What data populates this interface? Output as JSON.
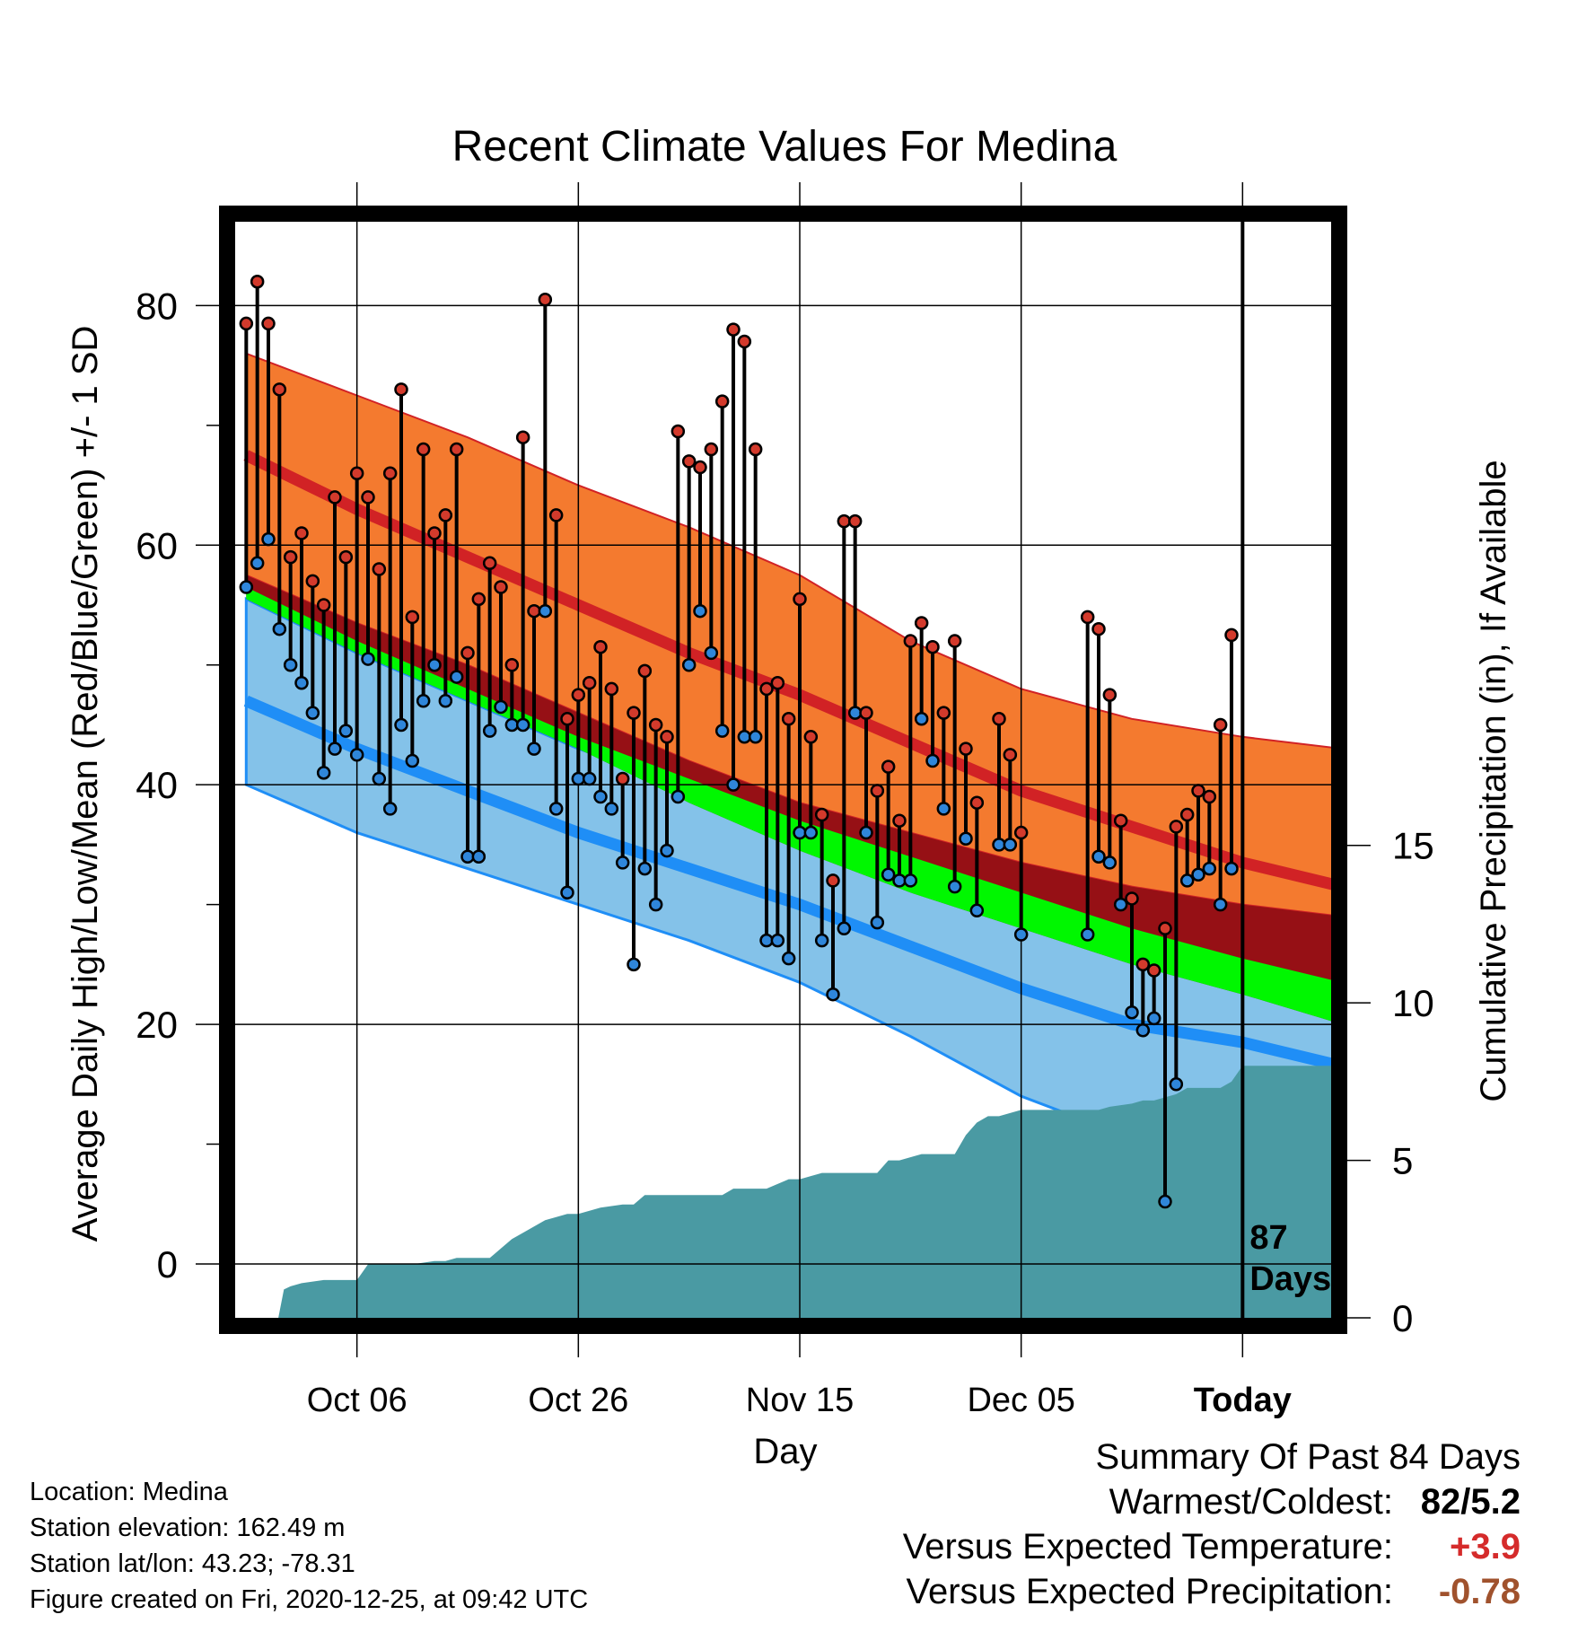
{
  "chart_data": {
    "type": "line",
    "title": "Recent Climate Values For Medina",
    "xlabel": "Day",
    "ylabel": "Average Daily High/Low/Mean (Red/Blue/Green) +/- 1 SD",
    "y2label": "Cumulative Precipitation (in), If Available",
    "xlim": [
      -11,
      88
    ],
    "ylim": [
      -4.5,
      87
    ],
    "y2lim": [
      0,
      34.8
    ],
    "x_ticks": [
      {
        "x": 0,
        "label": "Oct 06"
      },
      {
        "x": 20,
        "label": "Oct 26"
      },
      {
        "x": 40,
        "label": "Nov 15"
      },
      {
        "x": 60,
        "label": "Dec 05"
      },
      {
        "x": 80,
        "label": "Today"
      }
    ],
    "y_ticks": [
      0,
      20,
      40,
      60,
      80
    ],
    "y_minor_ticks": [
      10,
      30,
      50,
      70
    ],
    "y2_ticks": [
      0,
      5,
      10,
      15
    ],
    "today_x": 80,
    "annotation": [
      "87",
      "Days"
    ],
    "normals": {
      "x": [
        -10,
        0,
        10,
        20,
        30,
        40,
        50,
        60,
        70,
        80,
        89
      ],
      "high_mean": [
        67.5,
        63,
        59,
        55,
        51,
        47.5,
        43.5,
        39.5,
        36.5,
        33.5,
        31.5
      ],
      "high_upper": [
        76,
        72.5,
        69,
        65,
        61.5,
        57.5,
        52,
        48,
        45.5,
        44,
        43
      ],
      "high_lower": [
        57.5,
        53.5,
        50,
        46,
        42,
        38.5,
        36,
        33.5,
        31.5,
        30,
        29
      ],
      "mean": [
        56.5,
        52,
        48,
        44,
        40.5,
        37,
        34,
        31,
        28,
        25.5,
        23.5
      ],
      "mean_lower": [
        55.5,
        51,
        47,
        43,
        38.5,
        34.5,
        31,
        28,
        25,
        22.5,
        20
      ],
      "low_mean": [
        47,
        43,
        39.5,
        36,
        33,
        30,
        26.5,
        23,
        20,
        18.5,
        16.5
      ],
      "low_upper": [
        55.5,
        51,
        47,
        43,
        40,
        37,
        34,
        31,
        28,
        25,
        23
      ],
      "low_lower": [
        40,
        36,
        33,
        30,
        27,
        23.5,
        19,
        14,
        10.5,
        8,
        5.5
      ]
    },
    "observations": [
      {
        "day": -10,
        "high": 78.5,
        "low": 56.5
      },
      {
        "day": -9,
        "high": 82,
        "low": 58.5
      },
      {
        "day": -8,
        "high": 78.5,
        "low": 60.5
      },
      {
        "day": -7,
        "high": 73,
        "low": 53
      },
      {
        "day": -6,
        "high": 59,
        "low": 50
      },
      {
        "day": -5,
        "high": 61,
        "low": 48.5
      },
      {
        "day": -4,
        "high": 57,
        "low": 46
      },
      {
        "day": -3,
        "high": 55,
        "low": 41
      },
      {
        "day": -2,
        "high": 64,
        "low": 43
      },
      {
        "day": -1,
        "high": 59,
        "low": 44.5
      },
      {
        "day": 0,
        "high": 66,
        "low": 42.5
      },
      {
        "day": 1,
        "high": 64,
        "low": 50.5
      },
      {
        "day": 2,
        "high": 58,
        "low": 40.5
      },
      {
        "day": 3,
        "high": 66,
        "low": 38
      },
      {
        "day": 4,
        "high": 73,
        "low": 45
      },
      {
        "day": 5,
        "high": 54,
        "low": 42
      },
      {
        "day": 6,
        "high": 68,
        "low": 47
      },
      {
        "day": 7,
        "high": 61,
        "low": 50
      },
      {
        "day": 8,
        "high": 62.5,
        "low": 47
      },
      {
        "day": 9,
        "high": 68,
        "low": 49
      },
      {
        "day": 10,
        "high": 51,
        "low": 34
      },
      {
        "day": 11,
        "high": 55.5,
        "low": 34
      },
      {
        "day": 12,
        "high": 58.5,
        "low": 44.5
      },
      {
        "day": 13,
        "high": 56.5,
        "low": 46.5
      },
      {
        "day": 14,
        "high": 50,
        "low": 45
      },
      {
        "day": 15,
        "high": 69,
        "low": 45
      },
      {
        "day": 16,
        "high": 54.5,
        "low": 43
      },
      {
        "day": 17,
        "high": 80.5,
        "low": 54.5
      },
      {
        "day": 18,
        "high": 62.5,
        "low": 38
      },
      {
        "day": 19,
        "high": 45.5,
        "low": 31
      },
      {
        "day": 20,
        "high": 47.5,
        "low": 40.5
      },
      {
        "day": 21,
        "high": 48.5,
        "low": 40.5
      },
      {
        "day": 22,
        "high": 51.5,
        "low": 39
      },
      {
        "day": 23,
        "high": 48,
        "low": 38
      },
      {
        "day": 24,
        "high": 40.5,
        "low": 33.5
      },
      {
        "day": 25,
        "high": 46,
        "low": 25
      },
      {
        "day": 26,
        "high": 49.5,
        "low": 33
      },
      {
        "day": 27,
        "high": 45,
        "low": 30
      },
      {
        "day": 28,
        "high": 44,
        "low": 34.5
      },
      {
        "day": 29,
        "high": 69.5,
        "low": 39
      },
      {
        "day": 30,
        "high": 67,
        "low": 50
      },
      {
        "day": 31,
        "high": 66.5,
        "low": 54.5
      },
      {
        "day": 32,
        "high": 68,
        "low": 51
      },
      {
        "day": 33,
        "high": 72,
        "low": 44.5
      },
      {
        "day": 34,
        "high": 78,
        "low": 40
      },
      {
        "day": 35,
        "high": 77,
        "low": 44
      },
      {
        "day": 36,
        "high": 68,
        "low": 44
      },
      {
        "day": 37,
        "high": 48,
        "low": 27
      },
      {
        "day": 38,
        "high": 48.5,
        "low": 27
      },
      {
        "day": 39,
        "high": 45.5,
        "low": 25.5
      },
      {
        "day": 40,
        "high": 55.5,
        "low": 36
      },
      {
        "day": 41,
        "high": 44,
        "low": 36
      },
      {
        "day": 42,
        "high": 37.5,
        "low": 27
      },
      {
        "day": 43,
        "high": 32,
        "low": 22.5
      },
      {
        "day": 44,
        "high": 62,
        "low": 28
      },
      {
        "day": 45,
        "high": 62,
        "low": 46
      },
      {
        "day": 46,
        "high": 46,
        "low": 36
      },
      {
        "day": 47,
        "high": 39.5,
        "low": 28.5
      },
      {
        "day": 48,
        "high": 41.5,
        "low": 32.5
      },
      {
        "day": 49,
        "high": 37,
        "low": 32
      },
      {
        "day": 50,
        "high": 52,
        "low": 32
      },
      {
        "day": 51,
        "high": 53.5,
        "low": 45.5
      },
      {
        "day": 52,
        "high": 51.5,
        "low": 42
      },
      {
        "day": 53,
        "high": 46,
        "low": 38
      },
      {
        "day": 54,
        "high": 52,
        "low": 31.5
      },
      {
        "day": 55,
        "high": 43,
        "low": 35.5
      },
      {
        "day": 56,
        "high": 38.5,
        "low": 29.5
      },
      {
        "day": 58,
        "high": 45.5,
        "low": 35
      },
      {
        "day": 59,
        "high": 42.5,
        "low": 35
      },
      {
        "day": 60,
        "high": 36,
        "low": 27.5
      },
      {
        "day": 66,
        "high": 54,
        "low": 27.5
      },
      {
        "day": 67,
        "high": 53,
        "low": 34
      },
      {
        "day": 68,
        "high": 47.5,
        "low": 33.5
      },
      {
        "day": 69,
        "high": 37,
        "low": 30
      },
      {
        "day": 70,
        "high": 30.5,
        "low": 21
      },
      {
        "day": 71,
        "high": 25,
        "low": 19.5
      },
      {
        "day": 72,
        "high": 24.5,
        "low": 20.5
      },
      {
        "day": 73,
        "high": 28,
        "low": 5.2
      },
      {
        "day": 74,
        "high": 36.5,
        "low": 15
      },
      {
        "day": 75,
        "high": 37.5,
        "low": 32
      },
      {
        "day": 76,
        "high": 39.5,
        "low": 32.5
      },
      {
        "day": 77,
        "high": 39,
        "low": 33
      },
      {
        "day": 78,
        "high": 45,
        "low": 30
      },
      {
        "day": 79,
        "high": 52.5,
        "low": 33
      }
    ],
    "cumulative_precip": {
      "x": [
        -11,
        -7.1,
        -6.6,
        -6,
        -5,
        -3,
        -1,
        0,
        1,
        5,
        7,
        8,
        9,
        12,
        13,
        14,
        15,
        16,
        17,
        18,
        19,
        20,
        21,
        22,
        24,
        25,
        26,
        27,
        33,
        34,
        37,
        39,
        40,
        41,
        42,
        43,
        47,
        48,
        49,
        50,
        51,
        53,
        54,
        55,
        56,
        57,
        58,
        60,
        67,
        68,
        70,
        71,
        72,
        74,
        75,
        78,
        79,
        80,
        88
      ],
      "values": [
        0,
        0,
        0.9,
        1.0,
        1.1,
        1.2,
        1.2,
        1.2,
        1.7,
        1.7,
        1.8,
        1.8,
        1.9,
        1.9,
        2.2,
        2.5,
        2.7,
        2.9,
        3.1,
        3.2,
        3.3,
        3.3,
        3.4,
        3.5,
        3.6,
        3.6,
        3.9,
        3.9,
        3.9,
        4.1,
        4.1,
        4.4,
        4.4,
        4.5,
        4.6,
        4.6,
        4.6,
        5.0,
        5.0,
        5.1,
        5.2,
        5.2,
        5.2,
        5.8,
        6.2,
        6.4,
        6.4,
        6.6,
        6.6,
        6.7,
        6.8,
        6.9,
        6.9,
        7.1,
        7.3,
        7.3,
        7.5,
        8.0,
        8.0
      ]
    },
    "colors": {
      "high_band": "#f47a2f",
      "high_line": "#d12225",
      "low_band": "#84c2e9",
      "low_line": "#1f8ef6",
      "mean_line": "#00f700",
      "below_mean_fill": "#961015",
      "precip": "#4a9aa3",
      "high_marker": "#d33a2c",
      "low_marker": "#2f86da"
    }
  },
  "info": {
    "location": "Location: Medina",
    "elevation": "Station elevation: 162.49 m",
    "latlon": "Station lat/lon: 43.23; -78.31",
    "created": "Figure created on Fri, 2020-12-25, at 09:42 UTC"
  },
  "summary": {
    "title": "Summary Of Past 84 Days",
    "rows": [
      {
        "label": "Warmest/Coldest:",
        "value": "82/5.2",
        "color": "#000000"
      },
      {
        "label": "Versus Expected Temperature:",
        "value": "+3.9",
        "color": "#d52b2b"
      },
      {
        "label": "Versus Expected Precipitation:",
        "value": "-0.78",
        "color": "#a0522d"
      }
    ]
  }
}
